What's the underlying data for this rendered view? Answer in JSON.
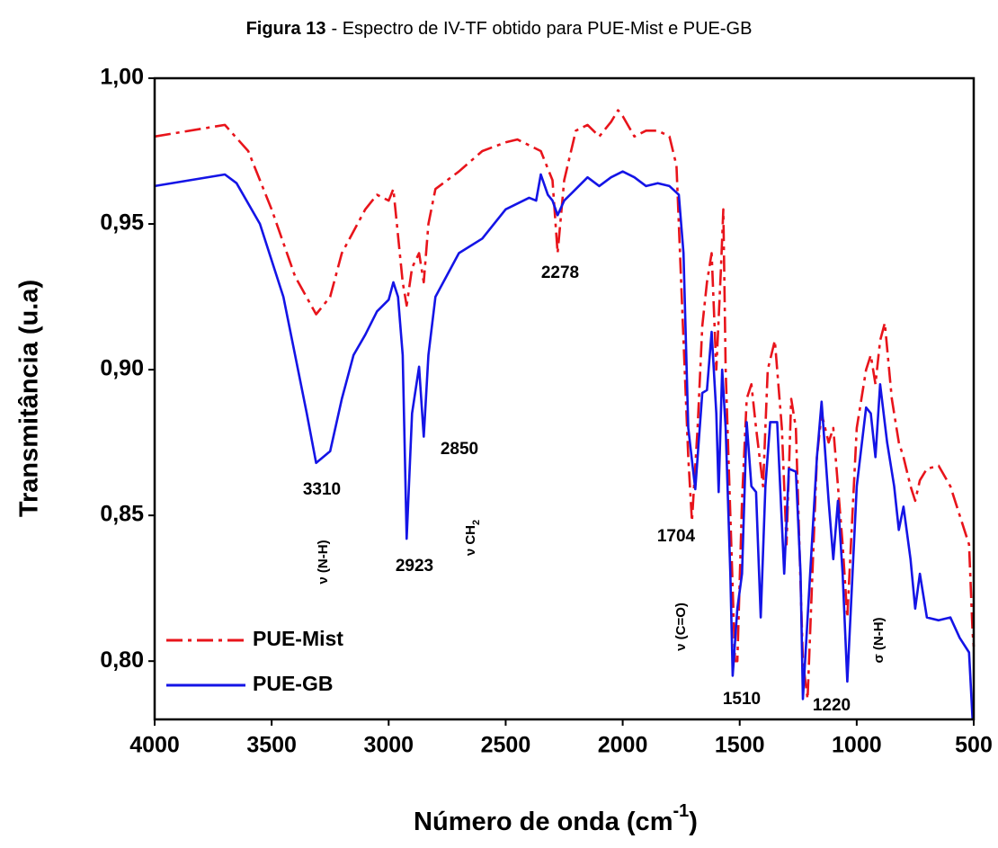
{
  "chart_data": {
    "type": "line",
    "title_label": "Figura 13",
    "title": "- Espectro de IV-TF obtido para PUE-Mist e PUE-GB",
    "xlabel": [
      "Número de onda (cm",
      "-1",
      ")"
    ],
    "ylabel": "Transmitância (u.a)",
    "xlim": [
      4000,
      500
    ],
    "ylim": [
      0.78,
      1.0
    ],
    "xticks": [
      4000,
      3500,
      3000,
      2500,
      2000,
      1500,
      1000,
      500
    ],
    "yticks": [
      {
        "value": 0.8,
        "label": "0,80"
      },
      {
        "value": 0.85,
        "label": "0,85"
      },
      {
        "value": 0.9,
        "label": "0,90"
      },
      {
        "value": 0.95,
        "label": "0,95"
      },
      {
        "value": 1.0,
        "label": "1,00"
      }
    ],
    "legend": "lower left",
    "annotations": [
      {
        "text": "3310"
      },
      {
        "text": "2923"
      },
      {
        "text": "2850"
      },
      {
        "text": "2278"
      },
      {
        "text": "1704"
      },
      {
        "text": "1510"
      },
      {
        "text": "1220"
      },
      {
        "text": "ν (N-H)"
      },
      {
        "text": "ν CH",
        "sub": "2"
      },
      {
        "text": "ν (C=O)"
      },
      {
        "text": "σ (N-H)"
      }
    ],
    "series": [
      {
        "name": "PUE-Mist",
        "color": "#e8141b",
        "linestyle": "dashdot",
        "x": [
          4000,
          3700,
          3600,
          3500,
          3400,
          3310,
          3250,
          3200,
          3100,
          3050,
          3000,
          2980,
          2940,
          2923,
          2900,
          2870,
          2850,
          2830,
          2800,
          2700,
          2600,
          2500,
          2450,
          2400,
          2350,
          2300,
          2278,
          2250,
          2200,
          2150,
          2100,
          2050,
          2020,
          2000,
          1950,
          1900,
          1850,
          1800,
          1770,
          1750,
          1720,
          1704,
          1680,
          1660,
          1640,
          1620,
          1600,
          1580,
          1570,
          1560,
          1540,
          1520,
          1510,
          1490,
          1470,
          1450,
          1430,
          1400,
          1380,
          1350,
          1320,
          1300,
          1280,
          1260,
          1230,
          1210,
          1170,
          1150,
          1120,
          1100,
          1060,
          1040,
          1000,
          960,
          940,
          920,
          900,
          880,
          850,
          820,
          800,
          770,
          750,
          730,
          700,
          650,
          600,
          560,
          520,
          505,
          500
        ],
        "values": [
          0.98,
          0.984,
          0.975,
          0.955,
          0.932,
          0.919,
          0.925,
          0.94,
          0.955,
          0.96,
          0.958,
          0.962,
          0.93,
          0.922,
          0.935,
          0.94,
          0.93,
          0.95,
          0.962,
          0.968,
          0.975,
          0.978,
          0.979,
          0.977,
          0.975,
          0.965,
          0.94,
          0.965,
          0.982,
          0.984,
          0.98,
          0.985,
          0.989,
          0.987,
          0.98,
          0.982,
          0.982,
          0.98,
          0.97,
          0.93,
          0.87,
          0.848,
          0.88,
          0.915,
          0.93,
          0.94,
          0.9,
          0.935,
          0.955,
          0.9,
          0.85,
          0.8,
          0.8,
          0.855,
          0.89,
          0.895,
          0.88,
          0.86,
          0.9,
          0.91,
          0.88,
          0.84,
          0.89,
          0.88,
          0.8,
          0.787,
          0.87,
          0.885,
          0.875,
          0.88,
          0.84,
          0.815,
          0.88,
          0.9,
          0.905,
          0.895,
          0.91,
          0.916,
          0.89,
          0.875,
          0.87,
          0.86,
          0.855,
          0.862,
          0.866,
          0.867,
          0.86,
          0.85,
          0.84,
          0.81,
          0.805
        ]
      },
      {
        "name": "PUE-GB",
        "color": "#1414e6",
        "linestyle": "solid",
        "x": [
          4000,
          3700,
          3650,
          3550,
          3450,
          3400,
          3350,
          3310,
          3250,
          3200,
          3150,
          3100,
          3050,
          3000,
          2980,
          2960,
          2940,
          2923,
          2900,
          2870,
          2850,
          2830,
          2800,
          2700,
          2600,
          2500,
          2400,
          2370,
          2350,
          2320,
          2300,
          2278,
          2250,
          2200,
          2150,
          2100,
          2050,
          2000,
          1950,
          1900,
          1850,
          1800,
          1760,
          1740,
          1720,
          1690,
          1680,
          1660,
          1640,
          1620,
          1600,
          1590,
          1575,
          1560,
          1540,
          1530,
          1510,
          1490,
          1470,
          1450,
          1430,
          1410,
          1390,
          1370,
          1340,
          1310,
          1290,
          1260,
          1240,
          1230,
          1170,
          1150,
          1120,
          1100,
          1080,
          1060,
          1040,
          1000,
          960,
          940,
          920,
          900,
          870,
          840,
          820,
          800,
          770,
          750,
          730,
          700,
          650,
          600,
          560,
          520,
          505,
          500
        ],
        "values": [
          0.963,
          0.967,
          0.964,
          0.95,
          0.925,
          0.905,
          0.885,
          0.868,
          0.872,
          0.89,
          0.905,
          0.912,
          0.92,
          0.924,
          0.93,
          0.925,
          0.905,
          0.842,
          0.885,
          0.901,
          0.877,
          0.905,
          0.925,
          0.94,
          0.945,
          0.955,
          0.959,
          0.958,
          0.967,
          0.96,
          0.958,
          0.953,
          0.958,
          0.962,
          0.966,
          0.963,
          0.966,
          0.968,
          0.966,
          0.963,
          0.964,
          0.963,
          0.96,
          0.94,
          0.88,
          0.859,
          0.87,
          0.892,
          0.893,
          0.913,
          0.885,
          0.858,
          0.9,
          0.88,
          0.83,
          0.795,
          0.818,
          0.83,
          0.882,
          0.86,
          0.858,
          0.815,
          0.86,
          0.882,
          0.882,
          0.83,
          0.866,
          0.865,
          0.83,
          0.787,
          0.87,
          0.889,
          0.855,
          0.835,
          0.855,
          0.83,
          0.793,
          0.86,
          0.887,
          0.885,
          0.87,
          0.895,
          0.875,
          0.86,
          0.845,
          0.853,
          0.835,
          0.818,
          0.83,
          0.815,
          0.814,
          0.815,
          0.808,
          0.803,
          0.78,
          0.78
        ]
      }
    ]
  }
}
